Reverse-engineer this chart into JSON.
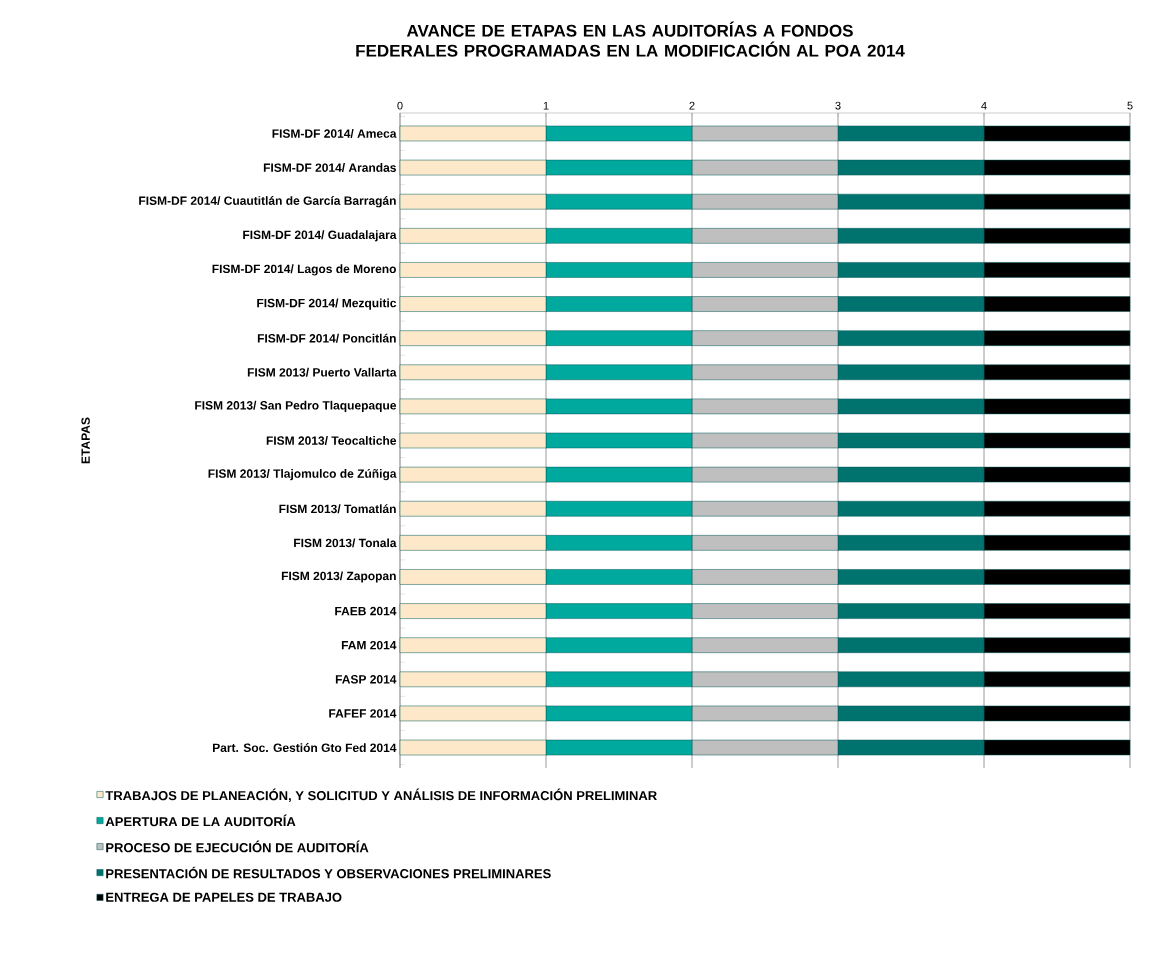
{
  "chart_data": {
    "type": "bar",
    "orientation": "horizontal",
    "stacked": true,
    "title": "AVANCE DE ETAPAS EN LAS AUDITORÍAS A FONDOS FEDERALES PROGRAMADAS EN LA MODIFICACIÓN AL POA 2014",
    "ylabel": "ETAPAS",
    "categories": [
      "FISM-DF 2014/ Ameca",
      "FISM-DF 2014/ Arandas",
      "FISM-DF 2014/ Cuautitlán de García Barragán",
      "FISM-DF 2014/ Guadalajara",
      "FISM-DF 2014/ Lagos de Moreno",
      "FISM-DF 2014/ Mezquitic",
      "FISM-DF 2014/ Poncitlán",
      "FISM 2013/ Puerto Vallarta",
      "FISM 2013/ San Pedro Tlaquepaque",
      "FISM 2013/ Teocaltiche",
      "FISM 2013/ Tlajomulco de Zúñiga",
      "FISM 2013/ Tomatlán",
      "FISM 2013/ Tonala",
      "FISM 2013/ Zapopan",
      "FAEB 2014",
      "FAM 2014",
      "FASP 2014",
      "FAFEF 2014",
      "Part. Soc. Gestión Gto Fed 2014"
    ],
    "series": [
      {
        "name": "TRABAJOS DE PLANEACIÓN, Y SOLICITUD Y ANÁLISIS DE INFORMACIÓN PRELIMINAR",
        "color": "#fde9c9",
        "values": [
          1,
          1,
          1,
          1,
          1,
          1,
          1,
          1,
          1,
          1,
          1,
          1,
          1,
          1,
          1,
          1,
          1,
          1,
          1
        ]
      },
      {
        "name": "APERTURA DE LA AUDITORÍA",
        "color": "#00a99d",
        "values": [
          1,
          1,
          1,
          1,
          1,
          1,
          1,
          1,
          1,
          1,
          1,
          1,
          1,
          1,
          1,
          1,
          1,
          1,
          1
        ]
      },
      {
        "name": "PROCESO DE EJECUCIÓN DE AUDITORÍA",
        "color": "#bfbfbf",
        "values": [
          1,
          1,
          1,
          1,
          1,
          1,
          1,
          1,
          1,
          1,
          1,
          1,
          1,
          1,
          1,
          1,
          1,
          1,
          1
        ]
      },
      {
        "name": "PRESENTACIÓN DE RESULTADOS Y OBSERVACIONES PRELIMINARES",
        "color": "#00736e",
        "values": [
          1,
          1,
          1,
          1,
          1,
          1,
          1,
          1,
          1,
          1,
          1,
          1,
          1,
          1,
          1,
          1,
          1,
          1,
          1
        ]
      },
      {
        "name": "ENTREGA DE PAPELES DE TRABAJO",
        "color": "#000000",
        "values": [
          1,
          1,
          1,
          1,
          1,
          1,
          1,
          1,
          1,
          1,
          1,
          1,
          1,
          1,
          1,
          1,
          1,
          1,
          1
        ]
      }
    ],
    "xlim": [
      0,
      5
    ],
    "xticks": [
      0,
      1,
      2,
      3,
      4,
      5
    ],
    "grid": "x",
    "legend": "bottom"
  }
}
